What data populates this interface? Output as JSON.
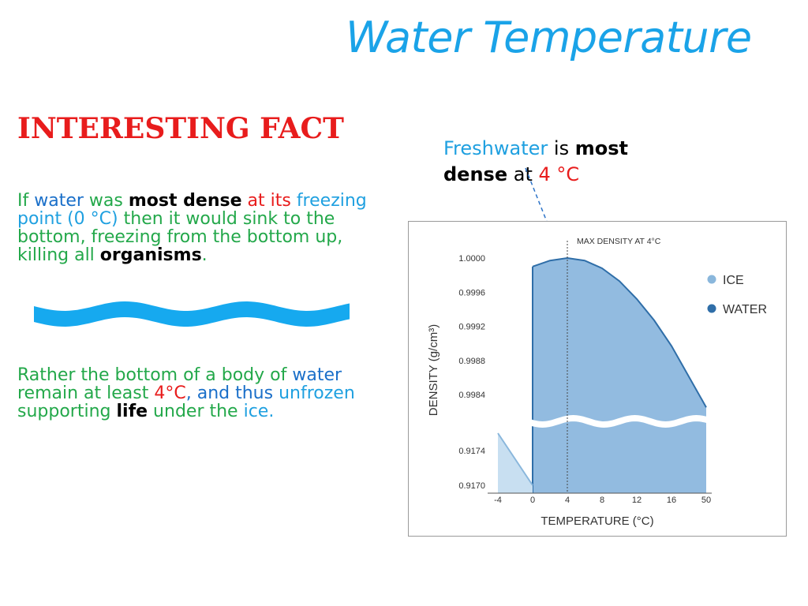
{
  "title": "Water Temperature",
  "fact_heading": "INTERESTING FACT",
  "paragraph1": {
    "if": "If ",
    "water": "water",
    "was": " was ",
    "most_dense": "most dense",
    "at_its": " at its",
    "freezing_point": "freezing point (0 °C)",
    "then": " then it would sink to the bottom, freezing from the bottom up, killing all ",
    "organisms": "organisms",
    "period": "."
  },
  "paragraph2": {
    "rather": "Rather the bottom of a body of ",
    "water": "water",
    "remain": " remain at least ",
    "temp": "4°C",
    "and_thus": ", and thus ",
    "unfrozen": "unfrozen",
    "supporting": " supporting ",
    "life": "life",
    "under": " under the ",
    "ice": "ice",
    "period": "."
  },
  "callout": {
    "freshwater": "Freshwater",
    "is": " is ",
    "most": "most",
    "dense": "dense",
    "at": " at ",
    "temp": "4 °C"
  },
  "colors": {
    "title": "#1aa3e8",
    "heading": "#e81c1c",
    "water_fill": "#92bbe0",
    "water_line": "#2f6ea8",
    "ice_fill": "#c8dff1",
    "ice_line": "#8ab7dc",
    "wave": "#16a9ef"
  },
  "chart_data": {
    "type": "area",
    "title": "",
    "annotation": "MAX DENSITY AT 4°C",
    "xlabel": "TEMPERATURE (°C)",
    "ylabel": "DENSITY (g/cm³)",
    "x_ticks": [
      "-4",
      "0",
      "4",
      "8",
      "12",
      "16",
      "50"
    ],
    "y_ticks_upper": [
      "1.0000",
      "0.9996",
      "0.9992",
      "0.9988",
      "0.9984"
    ],
    "y_ticks_lower": [
      "0.9174",
      "0.9170"
    ],
    "axis_break": true,
    "legend_position": "right",
    "series": [
      {
        "name": "ICE",
        "icon": "dot",
        "points": [
          {
            "x": -4,
            "y": 0.9176
          },
          {
            "x": 0,
            "y": 0.917
          }
        ]
      },
      {
        "name": "WATER",
        "icon": "dot",
        "points": [
          {
            "x": 0,
            "y": 0.9999
          },
          {
            "x": 2,
            "y": 0.99997
          },
          {
            "x": 4,
            "y": 1.0
          },
          {
            "x": 6,
            "y": 0.99997
          },
          {
            "x": 8,
            "y": 0.99988
          },
          {
            "x": 10,
            "y": 0.99973
          },
          {
            "x": 12,
            "y": 0.99952
          },
          {
            "x": 14,
            "y": 0.99927
          },
          {
            "x": 16,
            "y": 0.99897
          },
          {
            "x": 50,
            "y": 0.99825
          }
        ]
      }
    ]
  }
}
